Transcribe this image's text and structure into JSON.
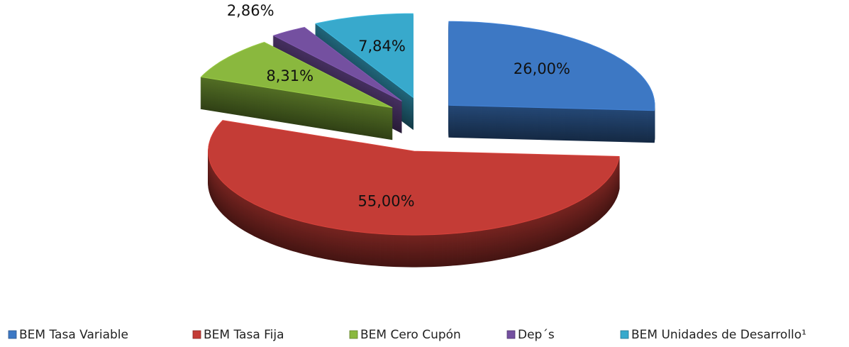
{
  "chart_data": {
    "type": "pie",
    "categories": [
      "BEM Tasa Variable",
      "BEM Tasa Fija",
      "BEM Cero Cupón",
      "Dep´s",
      "BEM Unidades de Desarrollo¹"
    ],
    "values": [
      26.0,
      55.0,
      8.31,
      2.86,
      7.84
    ],
    "value_labels": [
      "26,00%",
      "55,00%",
      "8,31%",
      "2,86%",
      "7,84%"
    ],
    "colors": [
      "#3d78c4",
      "#c43c36",
      "#8ab83e",
      "#7450a0",
      "#38a9cc"
    ],
    "legend": "bottom"
  }
}
